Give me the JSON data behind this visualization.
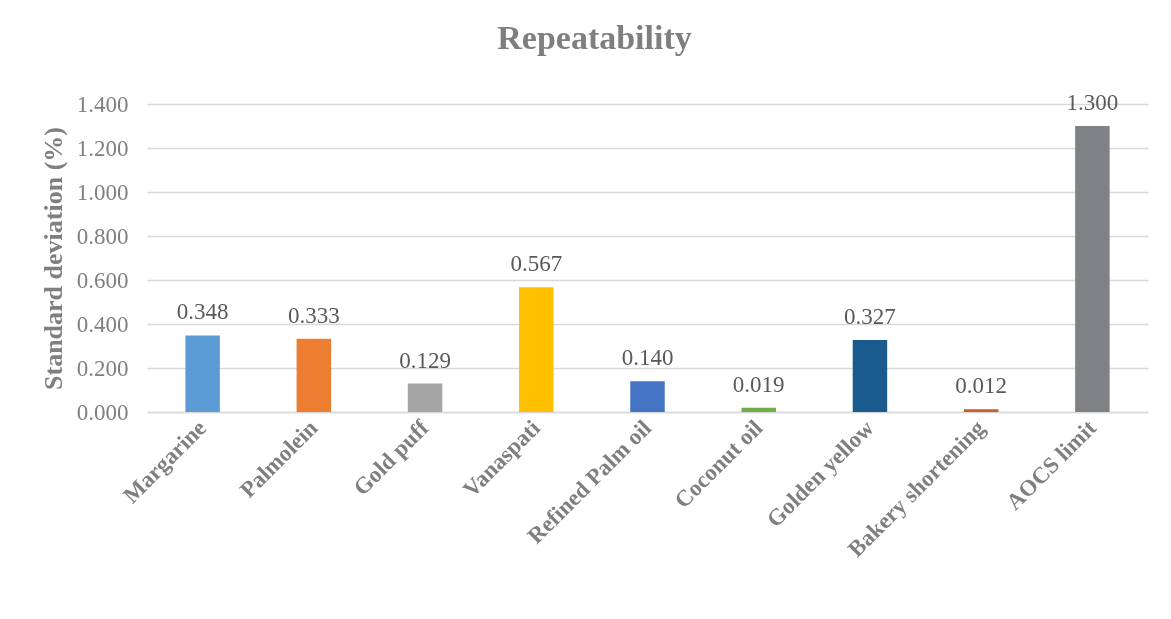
{
  "chart_data": {
    "type": "bar",
    "title": "Repeatability",
    "ylabel": "Standard deviation (%)",
    "categories": [
      "Margarine",
      "Palmolein",
      "Gold puff",
      "Vanaspati",
      "Refined Palm oil",
      "Coconut oil",
      "Golden yellow",
      "Bakery shortening",
      "AOCS limit"
    ],
    "values": [
      0.348,
      0.333,
      0.129,
      0.567,
      0.14,
      0.019,
      0.327,
      0.012,
      1.3
    ],
    "value_labels": [
      "0.348",
      "0.333",
      "0.129",
      "0.567",
      "0.140",
      "0.019",
      "0.327",
      "0.012",
      "1.300"
    ],
    "colors": [
      "#5b9bd5",
      "#ed7d31",
      "#a5a5a5",
      "#ffc000",
      "#4472c4",
      "#70ad47",
      "#1a5b8e",
      "#c0622a",
      "#7f8184"
    ],
    "ylim": [
      0,
      1.4
    ],
    "yticks": [
      {
        "value": 0,
        "label": "0.000"
      },
      {
        "value": 0.2,
        "label": "0.200"
      },
      {
        "value": 0.4,
        "label": "0.400"
      },
      {
        "value": 0.6,
        "label": "0.600"
      },
      {
        "value": 0.8,
        "label": "0.800"
      },
      {
        "value": 1.0,
        "label": "1.000"
      },
      {
        "value": 1.2,
        "label": "1.200"
      },
      {
        "value": 1.4,
        "label": "1.400"
      }
    ],
    "grid": "y"
  }
}
